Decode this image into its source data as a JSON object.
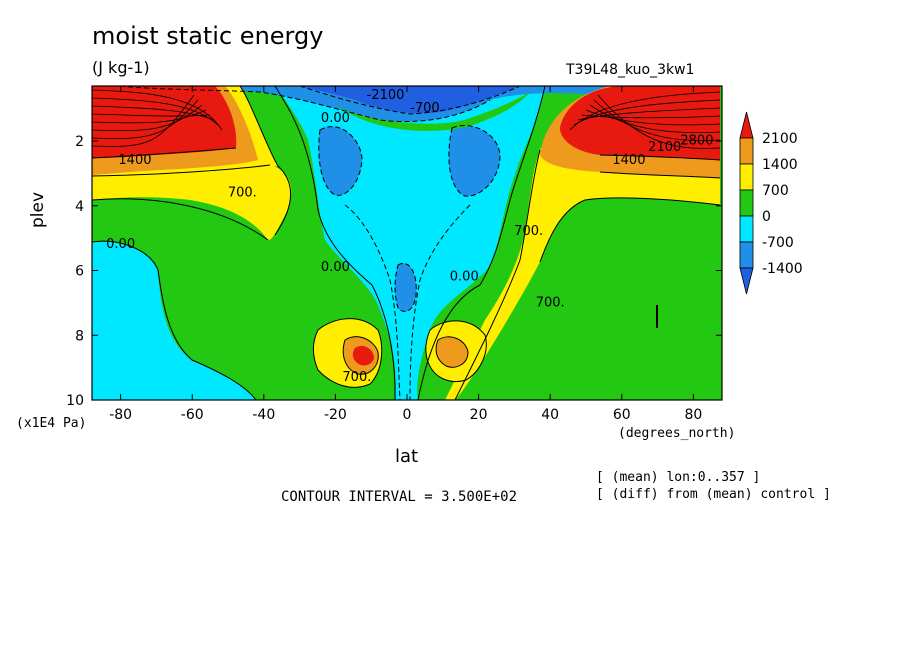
{
  "chart_data": {
    "type": "heatmap",
    "title": "moist static energy",
    "units": "(J kg-1)",
    "run_label": "T39L48_kuo_3kw1",
    "xlabel": "lat",
    "xunits": "(degrees_north)",
    "ylabel": "plev",
    "yunits": "(x1E4 Pa)",
    "x_ticks": [
      -80,
      -60,
      -40,
      -20,
      0,
      20,
      40,
      60,
      80
    ],
    "y_ticks": [
      2,
      4,
      6,
      8,
      10
    ],
    "xlim": [
      -88,
      88
    ],
    "ylim": [
      10,
      0.3
    ],
    "contour_interval_text": "CONTOUR INTERVAL = 3.500E+02",
    "notes": [
      "[ (mean) lon:0..357 ]",
      "[ (diff) from (mean) control ]"
    ],
    "colorbar": {
      "labels": [
        "2100",
        "1400",
        "700",
        "0",
        "-700",
        "-1400"
      ],
      "colors": [
        "#e8190f",
        "#ee9a1c",
        "#ffee00",
        "#22c812",
        "#00e8ff",
        "#1f8fe8",
        "#1f5fe0"
      ]
    },
    "contour_labels": [
      {
        "text": "1400",
        "lat": -76,
        "plev": 2.6
      },
      {
        "text": "700.",
        "lat": -46,
        "plev": 3.6
      },
      {
        "text": "0.00",
        "lat": -80,
        "plev": 5.2
      },
      {
        "text": "0.00",
        "lat": -20,
        "plev": 1.3
      },
      {
        "text": "0.00",
        "lat": -20,
        "plev": 5.9
      },
      {
        "text": "0.00",
        "lat": 16,
        "plev": 6.2
      },
      {
        "text": "700.",
        "lat": 34,
        "plev": 4.8
      },
      {
        "text": "700.",
        "lat": 40,
        "plev": 7.0
      },
      {
        "text": "700.",
        "lat": -14,
        "plev": 9.3
      },
      {
        "text": "1400",
        "lat": 62,
        "plev": 2.6
      },
      {
        "text": "2100",
        "lat": 72,
        "plev": 2.2
      },
      {
        "text": "2800",
        "lat": 81,
        "plev": 2.0
      },
      {
        "text": "-700",
        "lat": 5,
        "plev": 1.0
      },
      {
        "text": "-2100",
        "lat": -6,
        "plev": 0.6
      }
    ]
  }
}
